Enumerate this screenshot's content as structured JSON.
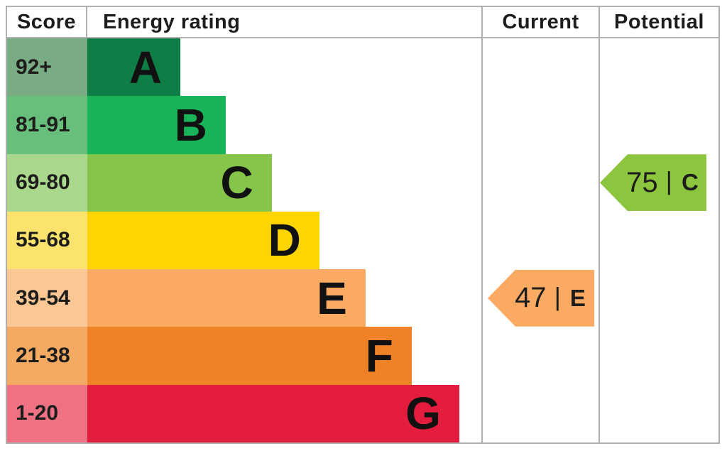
{
  "header": {
    "score": "Score",
    "energy_rating": "Energy rating",
    "current": "Current",
    "potential": "Potential"
  },
  "chart_data": {
    "type": "bar",
    "title": "Energy rating",
    "categories": [
      "A",
      "B",
      "C",
      "D",
      "E",
      "F",
      "G"
    ],
    "bands": [
      {
        "score": "92+",
        "letter": "A",
        "width_pct": 23.6,
        "bar_color": "#0f7e46",
        "score_color": "#79ab85"
      },
      {
        "score": "81-91",
        "letter": "B",
        "width_pct": 35.1,
        "bar_color": "#19b459",
        "score_color": "#68bf7b"
      },
      {
        "score": "69-80",
        "letter": "C",
        "width_pct": 46.8,
        "bar_color": "#85c64a",
        "score_color": "#a9d78c"
      },
      {
        "score": "55-68",
        "letter": "D",
        "width_pct": 58.9,
        "bar_color": "#fed402",
        "score_color": "#fce36e"
      },
      {
        "score": "39-54",
        "letter": "E",
        "width_pct": 70.6,
        "bar_color": "#fbaa64",
        "score_color": "#fbc795"
      },
      {
        "score": "21-38",
        "letter": "F",
        "width_pct": 82.3,
        "bar_color": "#ef8126",
        "score_color": "#f5aa64"
      },
      {
        "score": "1-20",
        "letter": "G",
        "width_pct": 94.4,
        "bar_color": "#e41c3d",
        "score_color": "#ee7284"
      }
    ],
    "current": {
      "value": "47",
      "separator": "|",
      "letter": "E",
      "row_index": 4,
      "color": "#fbaa64"
    },
    "potential": {
      "value": "75",
      "separator": "|",
      "letter": "C",
      "row_index": 2,
      "color": "#8cc63f"
    }
  }
}
